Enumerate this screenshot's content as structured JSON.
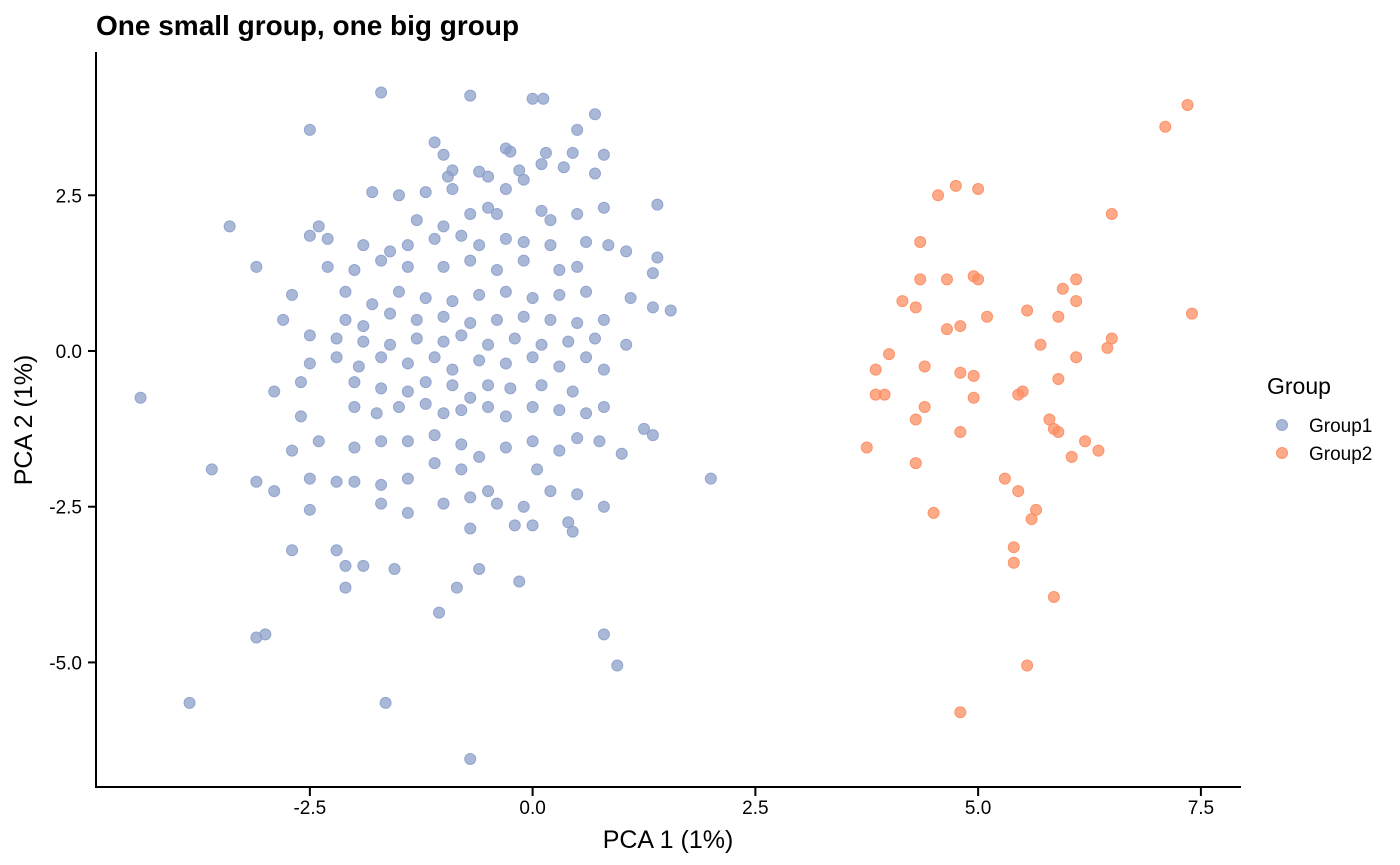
{
  "chart_data": {
    "type": "scatter",
    "title": "One small group, one big group",
    "xlabel": "PCA 1 (1%)",
    "ylabel": "PCA 2 (1%)",
    "xlim": [
      -4.9,
      7.95
    ],
    "ylim": [
      -7.0,
      4.8
    ],
    "x_ticks": [
      -2.5,
      0.0,
      2.5,
      5.0,
      7.5
    ],
    "x_tick_labels": [
      "-2.5",
      "0.0",
      "2.5",
      "5.0",
      "7.5"
    ],
    "y_ticks": [
      2.5,
      0.0,
      -2.5,
      -5.0
    ],
    "y_tick_labels": [
      "2.5",
      "0.0",
      "-2.5",
      "-5.0"
    ],
    "grid": false,
    "legend": {
      "title": "Group",
      "position": "right"
    },
    "series": [
      {
        "name": "Group1",
        "color": "#8DA0CB",
        "points": [
          [
            -1.7,
            4.15
          ],
          [
            -0.7,
            4.1
          ],
          [
            0.0,
            4.05
          ],
          [
            0.12,
            4.05
          ],
          [
            0.7,
            3.8
          ],
          [
            -2.5,
            3.55
          ],
          [
            0.5,
            3.55
          ],
          [
            -1.1,
            3.35
          ],
          [
            -0.3,
            3.25
          ],
          [
            -0.25,
            3.2
          ],
          [
            0.15,
            3.18
          ],
          [
            0.45,
            3.18
          ],
          [
            -1.0,
            3.15
          ],
          [
            0.8,
            3.15
          ],
          [
            0.1,
            3.0
          ],
          [
            0.35,
            2.95
          ],
          [
            -0.9,
            2.9
          ],
          [
            -0.15,
            2.9
          ],
          [
            -0.6,
            2.88
          ],
          [
            0.7,
            2.85
          ],
          [
            -0.95,
            2.8
          ],
          [
            -0.5,
            2.8
          ],
          [
            -0.1,
            2.75
          ],
          [
            -0.3,
            2.6
          ],
          [
            -1.8,
            2.55
          ],
          [
            -1.5,
            2.5
          ],
          [
            -1.2,
            2.55
          ],
          [
            -0.9,
            2.6
          ],
          [
            0.8,
            2.3
          ],
          [
            -0.5,
            2.3
          ],
          [
            0.1,
            2.25
          ],
          [
            -2.4,
            2.0
          ],
          [
            -3.4,
            2.0
          ],
          [
            -1.3,
            2.1
          ],
          [
            -1.0,
            2.0
          ],
          [
            -0.7,
            2.2
          ],
          [
            -0.4,
            2.2
          ],
          [
            0.2,
            2.1
          ],
          [
            0.5,
            2.2
          ],
          [
            1.4,
            2.35
          ],
          [
            -2.5,
            1.85
          ],
          [
            -2.3,
            1.8
          ],
          [
            -1.9,
            1.7
          ],
          [
            -1.6,
            1.6
          ],
          [
            -1.4,
            1.7
          ],
          [
            -1.1,
            1.8
          ],
          [
            -0.8,
            1.85
          ],
          [
            -0.6,
            1.7
          ],
          [
            -0.3,
            1.8
          ],
          [
            -0.1,
            1.75
          ],
          [
            0.2,
            1.7
          ],
          [
            0.6,
            1.75
          ],
          [
            0.85,
            1.7
          ],
          [
            1.05,
            1.6
          ],
          [
            -3.1,
            1.35
          ],
          [
            -2.3,
            1.35
          ],
          [
            -2.0,
            1.3
          ],
          [
            -1.7,
            1.45
          ],
          [
            -1.4,
            1.35
          ],
          [
            -1.0,
            1.35
          ],
          [
            -0.7,
            1.45
          ],
          [
            -0.4,
            1.3
          ],
          [
            -0.1,
            1.45
          ],
          [
            0.3,
            1.3
          ],
          [
            0.5,
            1.35
          ],
          [
            1.4,
            1.5
          ],
          [
            1.35,
            1.25
          ],
          [
            -2.7,
            0.9
          ],
          [
            -2.1,
            0.95
          ],
          [
            -1.8,
            0.75
          ],
          [
            -1.5,
            0.95
          ],
          [
            -1.2,
            0.85
          ],
          [
            -0.9,
            0.8
          ],
          [
            -0.6,
            0.9
          ],
          [
            -0.3,
            0.95
          ],
          [
            0.0,
            0.85
          ],
          [
            0.3,
            0.9
          ],
          [
            0.6,
            0.95
          ],
          [
            1.1,
            0.85
          ],
          [
            -2.8,
            0.5
          ],
          [
            -2.1,
            0.5
          ],
          [
            -1.9,
            0.4
          ],
          [
            -1.6,
            0.6
          ],
          [
            -1.3,
            0.5
          ],
          [
            -1.0,
            0.55
          ],
          [
            -0.7,
            0.45
          ],
          [
            -0.4,
            0.5
          ],
          [
            -0.1,
            0.55
          ],
          [
            0.2,
            0.5
          ],
          [
            0.5,
            0.45
          ],
          [
            0.8,
            0.5
          ],
          [
            1.35,
            0.7
          ],
          [
            1.55,
            0.65
          ],
          [
            -2.5,
            0.25
          ],
          [
            -2.2,
            0.2
          ],
          [
            -1.9,
            0.15
          ],
          [
            -1.6,
            0.1
          ],
          [
            -1.3,
            0.2
          ],
          [
            -1.0,
            0.15
          ],
          [
            -0.8,
            0.25
          ],
          [
            -0.5,
            0.1
          ],
          [
            -0.2,
            0.2
          ],
          [
            0.1,
            0.1
          ],
          [
            0.4,
            0.15
          ],
          [
            0.7,
            0.2
          ],
          [
            1.05,
            0.1
          ],
          [
            -2.5,
            -0.2
          ],
          [
            -2.2,
            -0.1
          ],
          [
            -1.95,
            -0.25
          ],
          [
            -1.7,
            -0.1
          ],
          [
            -1.4,
            -0.2
          ],
          [
            -1.1,
            -0.1
          ],
          [
            -0.9,
            -0.3
          ],
          [
            -0.6,
            -0.15
          ],
          [
            -0.3,
            -0.2
          ],
          [
            0.0,
            -0.1
          ],
          [
            0.3,
            -0.25
          ],
          [
            0.6,
            -0.1
          ],
          [
            0.8,
            -0.3
          ],
          [
            -4.4,
            -0.75
          ],
          [
            -2.9,
            -0.65
          ],
          [
            -2.6,
            -0.5
          ],
          [
            -2.0,
            -0.5
          ],
          [
            -1.7,
            -0.6
          ],
          [
            -1.4,
            -0.65
          ],
          [
            -1.2,
            -0.5
          ],
          [
            -0.9,
            -0.55
          ],
          [
            -0.7,
            -0.75
          ],
          [
            -0.5,
            -0.55
          ],
          [
            -0.25,
            -0.6
          ],
          [
            0.1,
            -0.55
          ],
          [
            0.45,
            -0.65
          ],
          [
            0.8,
            -0.9
          ],
          [
            -2.6,
            -1.05
          ],
          [
            -2.0,
            -0.9
          ],
          [
            -1.75,
            -1.0
          ],
          [
            -1.5,
            -0.9
          ],
          [
            -1.2,
            -0.85
          ],
          [
            -1.0,
            -1.0
          ],
          [
            -0.8,
            -0.95
          ],
          [
            -0.5,
            -0.9
          ],
          [
            -0.3,
            -1.05
          ],
          [
            0.0,
            -0.9
          ],
          [
            0.3,
            -0.95
          ],
          [
            0.6,
            -1.0
          ],
          [
            1.25,
            -1.25
          ],
          [
            1.35,
            -1.35
          ],
          [
            -2.7,
            -1.6
          ],
          [
            -2.4,
            -1.45
          ],
          [
            -2.0,
            -1.55
          ],
          [
            -1.7,
            -1.45
          ],
          [
            -1.4,
            -1.45
          ],
          [
            -1.1,
            -1.35
          ],
          [
            -0.8,
            -1.5
          ],
          [
            -0.6,
            -1.7
          ],
          [
            -0.3,
            -1.55
          ],
          [
            0.0,
            -1.45
          ],
          [
            0.3,
            -1.6
          ],
          [
            0.5,
            -1.4
          ],
          [
            0.75,
            -1.45
          ],
          [
            1.0,
            -1.65
          ],
          [
            -3.6,
            -1.9
          ],
          [
            -2.5,
            -2.05
          ],
          [
            -2.2,
            -2.1
          ],
          [
            -2.0,
            -2.1
          ],
          [
            -1.7,
            -2.15
          ],
          [
            -1.4,
            -2.05
          ],
          [
            -1.1,
            -1.8
          ],
          [
            -0.8,
            -1.9
          ],
          [
            -0.5,
            -2.25
          ],
          [
            0.05,
            -1.9
          ],
          [
            0.2,
            -2.25
          ],
          [
            0.5,
            -2.3
          ],
          [
            2.0,
            -2.05
          ],
          [
            -3.1,
            -2.1
          ],
          [
            -2.9,
            -2.25
          ],
          [
            -2.5,
            -2.55
          ],
          [
            -1.7,
            -2.45
          ],
          [
            -1.4,
            -2.6
          ],
          [
            -1.0,
            -2.45
          ],
          [
            -0.7,
            -2.35
          ],
          [
            -0.4,
            -2.45
          ],
          [
            -0.1,
            -2.5
          ],
          [
            0.4,
            -2.75
          ],
          [
            0.8,
            -2.5
          ],
          [
            -2.7,
            -3.2
          ],
          [
            -2.2,
            -3.2
          ],
          [
            -1.9,
            -3.45
          ],
          [
            -1.55,
            -3.5
          ],
          [
            -0.7,
            -2.85
          ],
          [
            -0.2,
            -2.8
          ],
          [
            0.0,
            -2.8
          ],
          [
            0.45,
            -2.9
          ],
          [
            -2.1,
            -3.45
          ],
          [
            -0.6,
            -3.5
          ],
          [
            -0.15,
            -3.7
          ],
          [
            -2.1,
            -3.8
          ],
          [
            -0.85,
            -3.8
          ],
          [
            -3.1,
            -4.6
          ],
          [
            -3.0,
            -4.55
          ],
          [
            -1.05,
            -4.2
          ],
          [
            0.8,
            -4.55
          ],
          [
            0.95,
            -5.05
          ],
          [
            -3.85,
            -5.65
          ],
          [
            -1.65,
            -5.65
          ],
          [
            -0.7,
            -6.55
          ]
        ]
      },
      {
        "name": "Group2",
        "color": "#FC8D62",
        "points": [
          [
            7.35,
            3.95
          ],
          [
            7.1,
            3.6
          ],
          [
            4.75,
            2.65
          ],
          [
            4.55,
            2.5
          ],
          [
            5.0,
            2.6
          ],
          [
            6.5,
            2.2
          ],
          [
            4.35,
            1.75
          ],
          [
            4.35,
            1.15
          ],
          [
            4.65,
            1.15
          ],
          [
            4.95,
            1.2
          ],
          [
            5.0,
            1.15
          ],
          [
            6.1,
            1.15
          ],
          [
            5.95,
            1.0
          ],
          [
            4.15,
            0.8
          ],
          [
            6.1,
            0.8
          ],
          [
            4.3,
            0.7
          ],
          [
            5.55,
            0.65
          ],
          [
            7.4,
            0.6
          ],
          [
            5.1,
            0.55
          ],
          [
            5.9,
            0.55
          ],
          [
            4.8,
            0.4
          ],
          [
            4.65,
            0.35
          ],
          [
            6.5,
            0.2
          ],
          [
            5.7,
            0.1
          ],
          [
            6.45,
            0.05
          ],
          [
            4.0,
            -0.05
          ],
          [
            6.1,
            -0.1
          ],
          [
            4.4,
            -0.25
          ],
          [
            3.85,
            -0.3
          ],
          [
            4.8,
            -0.35
          ],
          [
            4.95,
            -0.4
          ],
          [
            5.9,
            -0.45
          ],
          [
            5.5,
            -0.65
          ],
          [
            5.45,
            -0.7
          ],
          [
            3.85,
            -0.7
          ],
          [
            3.95,
            -0.7
          ],
          [
            4.95,
            -0.75
          ],
          [
            4.4,
            -0.9
          ],
          [
            4.3,
            -1.1
          ],
          [
            5.8,
            -1.1
          ],
          [
            5.85,
            -1.25
          ],
          [
            5.9,
            -1.3
          ],
          [
            4.8,
            -1.3
          ],
          [
            6.2,
            -1.45
          ],
          [
            3.75,
            -1.55
          ],
          [
            6.35,
            -1.6
          ],
          [
            6.05,
            -1.7
          ],
          [
            4.3,
            -1.8
          ],
          [
            5.3,
            -2.05
          ],
          [
            5.45,
            -2.25
          ],
          [
            4.5,
            -2.6
          ],
          [
            5.65,
            -2.55
          ],
          [
            5.6,
            -2.7
          ],
          [
            5.4,
            -3.15
          ],
          [
            5.4,
            -3.4
          ],
          [
            5.85,
            -3.95
          ],
          [
            5.55,
            -5.05
          ],
          [
            4.8,
            -5.8
          ]
        ]
      }
    ]
  }
}
